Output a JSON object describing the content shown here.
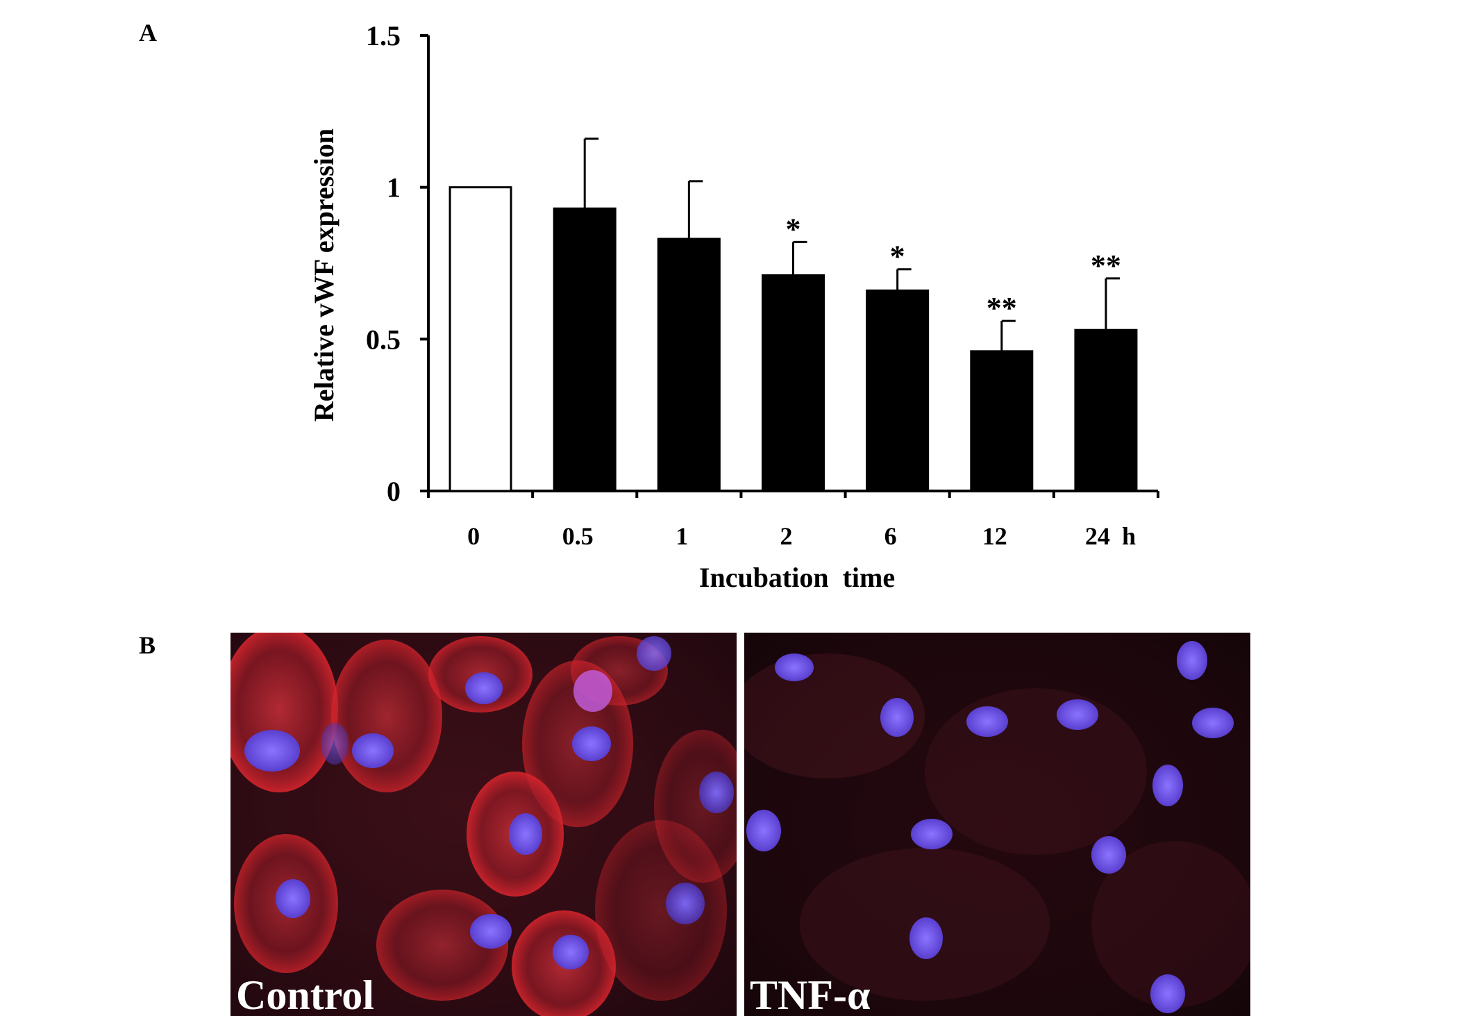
{
  "panels": {
    "a_label": "A",
    "b_label": "B"
  },
  "chart_data": {
    "type": "bar",
    "categories": [
      "0",
      "0.5",
      "1",
      "2",
      "6",
      "12",
      "24"
    ],
    "x_unit_label": "h",
    "values": [
      1.0,
      0.93,
      0.83,
      0.71,
      0.66,
      0.46,
      0.53
    ],
    "error_upper": [
      0,
      0.23,
      0.19,
      0.11,
      0.07,
      0.1,
      0.17
    ],
    "significance": [
      "",
      "",
      "",
      "*",
      "*",
      "**",
      "**"
    ],
    "bar_fill": [
      "#ffffff",
      "#000000",
      "#000000",
      "#000000",
      "#000000",
      "#000000",
      "#000000"
    ],
    "xlabel": "Incubation  time",
    "ylabel": "Relative vWF expression",
    "ylim": [
      0,
      1.5
    ],
    "yticks": [
      0,
      0.5,
      1,
      1.5
    ],
    "ytick_labels": [
      "0",
      "0.5",
      "1",
      "1.5"
    ],
    "grid": false,
    "legend": "none"
  },
  "micrographs": [
    {
      "caption": "Control",
      "stain": "vWF red, nuclei blue"
    },
    {
      "caption": "TNF-α",
      "stain": "vWF red, nuclei blue"
    }
  ],
  "colors": {
    "vwf_stain": "#d9262e",
    "nucleus_stain": "#7b5cff",
    "background_control": "#2a0a12",
    "background_tnf": "#1c070c"
  }
}
